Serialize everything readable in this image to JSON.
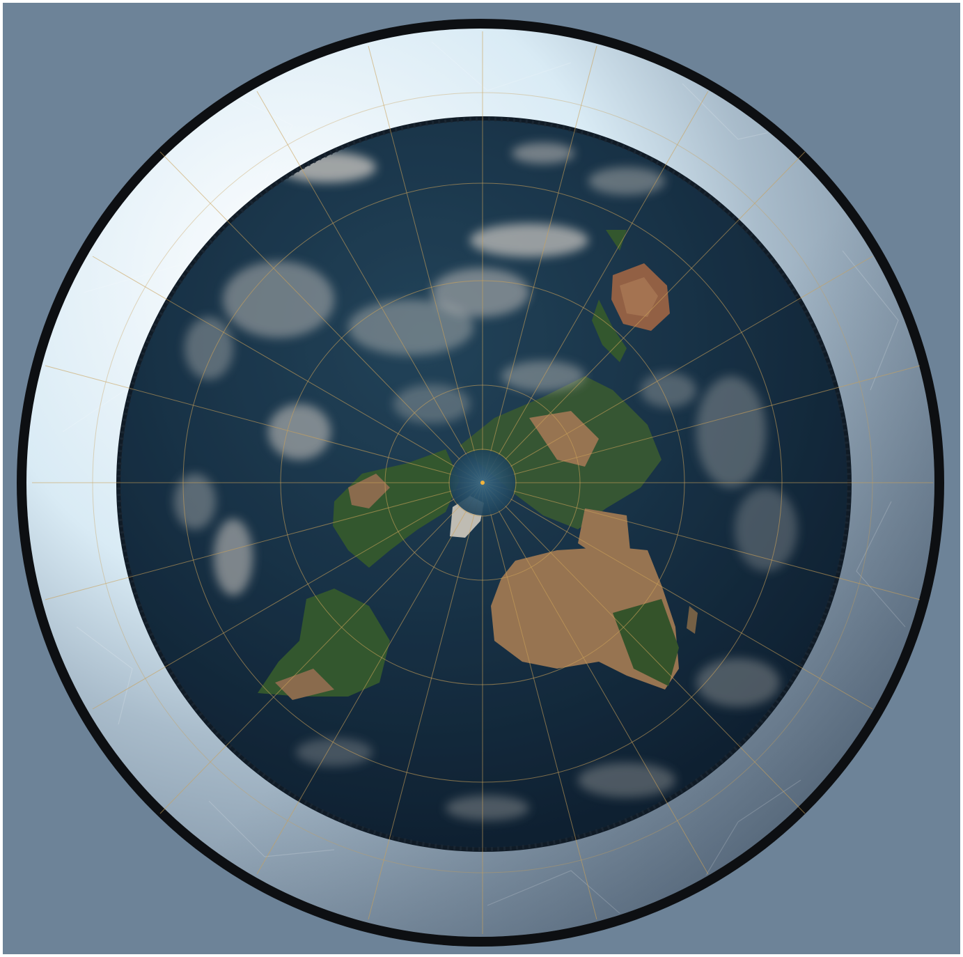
{
  "image": {
    "subject": "flat-earth-azimuthal-map-render",
    "colors": {
      "background": "#6d8398",
      "rim": "#0d0f12",
      "ice_light": "#dfeef6",
      "ice_shadow": "#6f8296",
      "ocean": "#1c3a4f",
      "ocean_dark": "#0f2233",
      "land_green": "#3f6a34",
      "land_desert": "#b98d5e",
      "cloud": "#e8e4dc",
      "grid_lines": "#c9a15a",
      "greenland": "#e9e4d6"
    },
    "icons": [
      "north-pole-marker"
    ]
  }
}
